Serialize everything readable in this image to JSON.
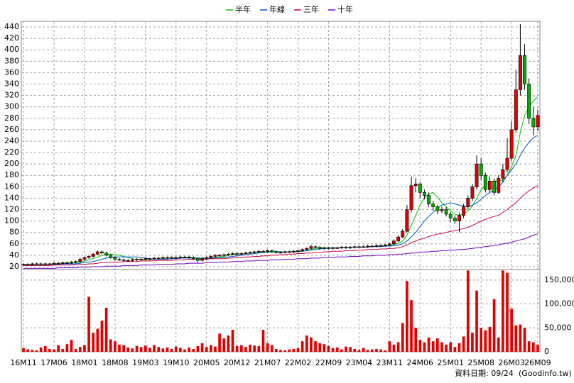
{
  "chart_data": {
    "type": "candlestick",
    "categories": [
      "16M11",
      null,
      null,
      null,
      null,
      null,
      null,
      "17M06",
      null,
      null,
      null,
      null,
      null,
      null,
      "18M01",
      null,
      null,
      null,
      null,
      null,
      null,
      "18M08",
      null,
      null,
      null,
      null,
      null,
      null,
      "19M03",
      null,
      null,
      null,
      null,
      null,
      null,
      "19M10",
      null,
      null,
      null,
      null,
      null,
      null,
      "20M05",
      null,
      null,
      null,
      null,
      null,
      null,
      "20M12",
      null,
      null,
      null,
      null,
      null,
      null,
      "21M07",
      null,
      null,
      null,
      null,
      null,
      null,
      "22M02",
      null,
      null,
      null,
      null,
      null,
      null,
      "22M09",
      null,
      null,
      null,
      null,
      null,
      null,
      "23M04",
      null,
      null,
      null,
      null,
      null,
      null,
      "23M11",
      null,
      null,
      null,
      null,
      null,
      null,
      "24M06",
      null,
      null,
      null,
      null,
      null,
      null,
      "25M01",
      null,
      null,
      null,
      null,
      null,
      null,
      "25M08",
      null,
      null,
      null,
      null,
      null,
      null,
      "26M03",
      null,
      null,
      null,
      null,
      null,
      "26M09"
    ],
    "open": [
      23,
      24,
      24,
      25,
      25,
      24,
      25,
      25,
      26,
      26,
      27,
      27,
      28,
      29,
      33,
      36,
      38,
      42,
      46,
      44,
      40,
      36,
      33,
      32,
      31,
      31,
      32,
      33,
      33,
      34,
      34,
      35,
      35,
      36,
      35,
      36,
      36,
      37,
      37,
      36,
      34,
      31,
      34,
      36,
      38,
      40,
      40,
      41,
      42,
      43,
      42,
      43,
      44,
      45,
      46,
      47,
      47,
      48,
      46,
      45,
      45,
      46,
      46,
      47,
      48,
      50,
      52,
      55,
      54,
      52,
      53,
      52,
      53,
      53,
      54,
      53,
      54,
      55,
      55,
      55,
      56,
      56,
      57,
      57,
      58,
      60,
      65,
      72,
      82,
      120,
      162,
      165,
      150,
      145,
      130,
      125,
      118,
      120,
      112,
      105,
      100,
      110,
      125,
      140,
      160,
      200,
      180,
      155,
      170,
      150,
      175,
      190,
      210,
      260,
      330,
      390,
      340,
      280,
      265
    ],
    "high": [
      26,
      26,
      27,
      27,
      27,
      27,
      27,
      28,
      28,
      29,
      29,
      30,
      31,
      35,
      38,
      40,
      44,
      48,
      48,
      46,
      42,
      38,
      35,
      34,
      33,
      34,
      35,
      35,
      36,
      36,
      37,
      37,
      38,
      38,
      38,
      38,
      39,
      39,
      39,
      38,
      36,
      36,
      38,
      40,
      42,
      42,
      43,
      44,
      45,
      45,
      45,
      46,
      47,
      48,
      49,
      49,
      50,
      50,
      48,
      47,
      48,
      48,
      49,
      50,
      52,
      54,
      58,
      57,
      56,
      55,
      55,
      55,
      55,
      56,
      56,
      56,
      57,
      57,
      57,
      58,
      58,
      59,
      59,
      60,
      62,
      68,
      75,
      86,
      128,
      178,
      175,
      168,
      155,
      150,
      135,
      128,
      125,
      124,
      116,
      110,
      115,
      130,
      145,
      165,
      215,
      210,
      185,
      178,
      175,
      180,
      200,
      245,
      275,
      365,
      445,
      410,
      350,
      300,
      295
    ],
    "low": [
      21,
      22,
      22,
      23,
      22,
      22,
      23,
      23,
      24,
      24,
      25,
      25,
      26,
      27,
      31,
      34,
      36,
      40,
      42,
      38,
      34,
      31,
      30,
      29,
      29,
      29,
      30,
      31,
      31,
      32,
      32,
      33,
      33,
      33,
      33,
      34,
      34,
      35,
      34,
      32,
      27,
      29,
      32,
      34,
      36,
      38,
      38,
      39,
      40,
      40,
      40,
      41,
      42,
      43,
      44,
      45,
      45,
      44,
      43,
      43,
      43,
      44,
      44,
      45,
      46,
      48,
      50,
      52,
      50,
      50,
      50,
      50,
      51,
      51,
      51,
      51,
      52,
      53,
      53,
      53,
      54,
      54,
      55,
      55,
      56,
      58,
      63,
      70,
      80,
      115,
      150,
      140,
      138,
      125,
      118,
      112,
      114,
      108,
      98,
      95,
      80,
      105,
      120,
      135,
      155,
      172,
      150,
      150,
      145,
      148,
      168,
      185,
      205,
      255,
      320,
      330,
      270,
      250,
      258
    ],
    "close": [
      24,
      24,
      25,
      25,
      24,
      25,
      25,
      26,
      26,
      27,
      27,
      28,
      29,
      33,
      36,
      38,
      42,
      46,
      44,
      40,
      36,
      33,
      32,
      31,
      31,
      32,
      33,
      33,
      34,
      34,
      35,
      35,
      36,
      35,
      36,
      36,
      37,
      37,
      36,
      34,
      31,
      34,
      36,
      38,
      40,
      40,
      41,
      42,
      43,
      42,
      43,
      44,
      45,
      46,
      47,
      47,
      48,
      46,
      45,
      45,
      46,
      46,
      47,
      48,
      50,
      52,
      55,
      54,
      52,
      53,
      52,
      53,
      53,
      54,
      53,
      54,
      55,
      55,
      55,
      56,
      56,
      57,
      57,
      58,
      60,
      65,
      72,
      82,
      120,
      162,
      165,
      150,
      145,
      130,
      125,
      118,
      120,
      112,
      105,
      100,
      110,
      125,
      140,
      160,
      200,
      180,
      155,
      170,
      150,
      175,
      190,
      210,
      260,
      330,
      390,
      340,
      280,
      265,
      285
    ],
    "up_color": "#e00000",
    "down_color": "#00b000",
    "series": [
      {
        "name": "半年",
        "color": "#00c000",
        "values": [
          24,
          24,
          24,
          24,
          24,
          24,
          24,
          25,
          25,
          25,
          26,
          26,
          27,
          28,
          30,
          32,
          34,
          37,
          40,
          42,
          42,
          41,
          40,
          38,
          36,
          34,
          32,
          32,
          32,
          32,
          33,
          33,
          34,
          35,
          35,
          35,
          36,
          36,
          36,
          36,
          35,
          35,
          35,
          35,
          36,
          37,
          38,
          40,
          41,
          42,
          42,
          43,
          44,
          45,
          45,
          46,
          46,
          47,
          47,
          46,
          46,
          46,
          46,
          46,
          47,
          48,
          50,
          52,
          53,
          53,
          53,
          53,
          53,
          53,
          53,
          53,
          54,
          54,
          54,
          55,
          55,
          56,
          56,
          57,
          57,
          59,
          61,
          65,
          75,
          92,
          110,
          128,
          140,
          148,
          150,
          142,
          132,
          125,
          118,
          112,
          110,
          112,
          118,
          126,
          140,
          155,
          162,
          168,
          170,
          170,
          172,
          180,
          195,
          215,
          255,
          285,
          300,
          310,
          318
        ]
      },
      {
        "name": "年線",
        "color": "#0050d0",
        "values": [
          23,
          23,
          23,
          24,
          24,
          24,
          24,
          24,
          24,
          25,
          25,
          25,
          25,
          26,
          27,
          28,
          29,
          31,
          33,
          35,
          36,
          37,
          37,
          37,
          37,
          37,
          37,
          36,
          35,
          34,
          33,
          33,
          33,
          33,
          34,
          34,
          35,
          35,
          35,
          35,
          35,
          35,
          35,
          35,
          35,
          36,
          36,
          37,
          38,
          39,
          40,
          41,
          42,
          43,
          44,
          45,
          45,
          46,
          46,
          46,
          46,
          46,
          47,
          47,
          47,
          48,
          49,
          50,
          51,
          52,
          52,
          53,
          53,
          53,
          53,
          53,
          54,
          54,
          54,
          54,
          55,
          55,
          55,
          56,
          56,
          57,
          58,
          60,
          65,
          72,
          80,
          90,
          100,
          108,
          115,
          122,
          128,
          130,
          132,
          130,
          128,
          126,
          125,
          128,
          132,
          138,
          145,
          150,
          155,
          160,
          168,
          180,
          190,
          200,
          215,
          228,
          238,
          246,
          250
        ]
      },
      {
        "name": "三年",
        "color": "#d00040",
        "values": [
          22,
          22,
          22,
          22,
          22,
          22,
          22,
          23,
          23,
          23,
          23,
          23,
          24,
          24,
          24,
          25,
          25,
          26,
          27,
          27,
          28,
          28,
          28,
          29,
          29,
          29,
          29,
          30,
          30,
          30,
          30,
          31,
          31,
          31,
          31,
          32,
          32,
          32,
          33,
          33,
          33,
          33,
          33,
          34,
          34,
          34,
          34,
          35,
          35,
          36,
          36,
          37,
          37,
          38,
          38,
          39,
          39,
          40,
          40,
          41,
          41,
          42,
          42,
          43,
          43,
          44,
          44,
          45,
          45,
          46,
          46,
          47,
          47,
          47,
          48,
          48,
          48,
          49,
          49,
          50,
          50,
          50,
          51,
          51,
          52,
          52,
          53,
          55,
          58,
          62,
          65,
          68,
          70,
          73,
          75,
          77,
          78,
          80,
          82,
          83,
          85,
          87,
          89,
          92,
          96,
          100,
          103,
          106,
          108,
          110,
          115,
          120,
          126,
          132,
          140,
          147,
          153,
          158,
          162
        ]
      },
      {
        "name": "十年",
        "color": "#7000c0",
        "values": [
          17,
          17,
          17,
          17,
          17,
          17,
          17,
          17,
          18,
          18,
          18,
          18,
          18,
          19,
          19,
          19,
          20,
          20,
          20,
          21,
          21,
          21,
          21,
          22,
          22,
          22,
          22,
          23,
          23,
          23,
          23,
          24,
          24,
          24,
          24,
          25,
          25,
          25,
          26,
          26,
          26,
          26,
          27,
          27,
          27,
          28,
          28,
          28,
          29,
          29,
          29,
          30,
          30,
          30,
          31,
          31,
          31,
          32,
          32,
          32,
          33,
          33,
          33,
          34,
          34,
          34,
          35,
          35,
          35,
          36,
          36,
          36,
          37,
          37,
          37,
          38,
          38,
          38,
          39,
          39,
          39,
          40,
          40,
          40,
          41,
          41,
          42,
          42,
          43,
          44,
          44,
          45,
          46,
          46,
          47,
          47,
          48,
          48,
          49,
          49,
          50,
          50,
          51,
          52,
          53,
          54,
          55,
          56,
          57,
          58,
          60,
          61,
          63,
          65,
          67,
          69,
          72,
          75,
          78
        ]
      }
    ],
    "ylim": [
      15,
      450
    ],
    "yticks": [
      20,
      40,
      60,
      80,
      100,
      120,
      140,
      160,
      180,
      200,
      220,
      240,
      260,
      280,
      300,
      320,
      340,
      360,
      380,
      400,
      420,
      440
    ],
    "grid": true,
    "volume": {
      "color": "#e00000",
      "ylim": [
        0,
        172000
      ],
      "yticks": [
        0,
        {
          "value": 50000,
          "label": "50,000"
        },
        {
          "value": 100000,
          "label": "100,000"
        },
        {
          "value": 150000,
          "label": "150,000"
        }
      ],
      "values": [
        8000,
        5000,
        4000,
        3000,
        9000,
        12000,
        6000,
        5000,
        14000,
        6000,
        16000,
        25000,
        6000,
        10000,
        14000,
        115000,
        40000,
        48000,
        65000,
        92000,
        26000,
        22000,
        15000,
        14000,
        9000,
        7000,
        12000,
        10000,
        13000,
        8000,
        14000,
        10000,
        7000,
        9000,
        6000,
        11000,
        8000,
        5000,
        9000,
        6000,
        12000,
        18000,
        10000,
        14000,
        11000,
        38000,
        28000,
        34000,
        46000,
        12000,
        14000,
        10000,
        15000,
        13000,
        12000,
        46000,
        18000,
        14000,
        6000,
        4000,
        3000,
        5000,
        6000,
        8000,
        22000,
        34000,
        30000,
        22000,
        18000,
        16000,
        12000,
        8000,
        9000,
        5000,
        11000,
        10000,
        6000,
        4000,
        8000,
        4000,
        5000,
        6000,
        5000,
        3000,
        22000,
        15000,
        20000,
        60000,
        148000,
        108000,
        50000,
        25000,
        20000,
        30000,
        22000,
        28000,
        20000,
        15000,
        20000,
        10000,
        18000,
        32000,
        170000,
        40000,
        128000,
        50000,
        45000,
        52000,
        110000,
        30000,
        170000,
        165000,
        90000,
        55000,
        57000,
        50000,
        22000,
        20000,
        15000
      ]
    },
    "source_note": "資料日期: 09/24",
    "source": "(Goodinfo.tw)"
  }
}
